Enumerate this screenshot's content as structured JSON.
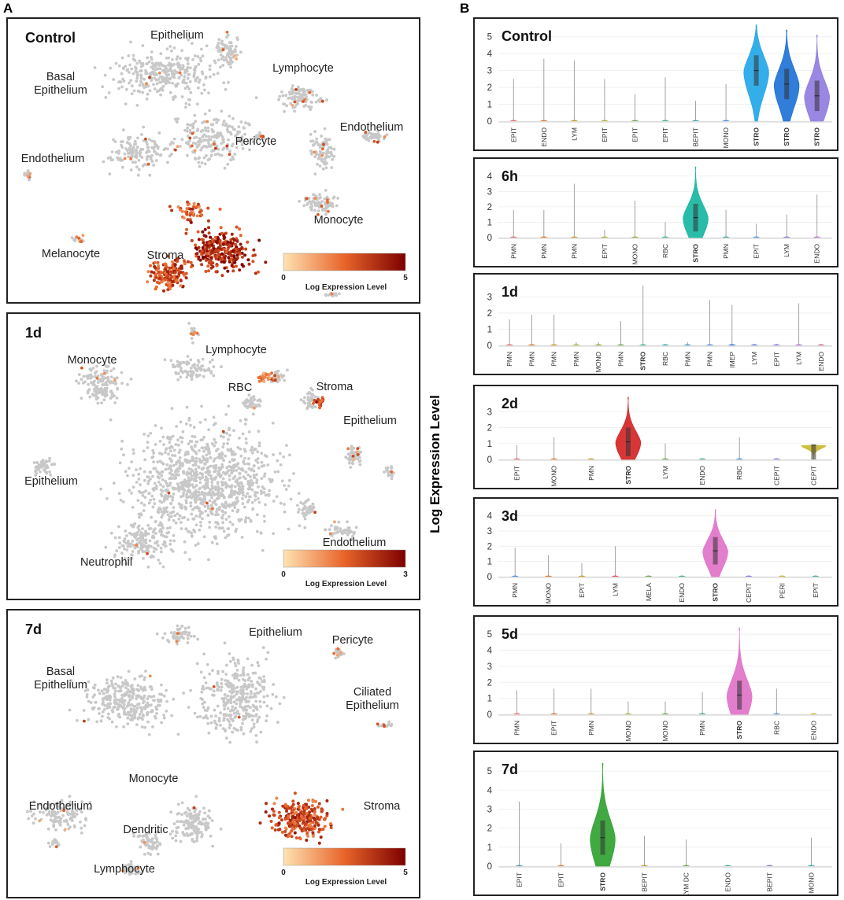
{
  "panels": {
    "a": "A",
    "b": "B"
  },
  "colors": {
    "dot": "#c8c8c8",
    "low": "#fde3b2",
    "mid": "#e8642a",
    "high": "#7d0000",
    "axis": "#555555"
  },
  "umaps": [
    {
      "title": "Control",
      "legend": {
        "min": "0",
        "max": "5",
        "label": "Log Expression Level"
      },
      "labels": [
        "Epithelium",
        "Basal\nEpithelium",
        "Lymphocyte",
        "Endothelium",
        "Pericyte",
        "Endothelium",
        "Monocyte",
        "Stroma",
        "Melanocyte"
      ]
    },
    {
      "title": "1d",
      "legend": {
        "min": "0",
        "max": "3",
        "label": "Log Expression Level"
      },
      "labels": [
        "Monocyte",
        "Lymphocyte",
        "RBC",
        "Stroma",
        "Epithelium",
        "Epithelium",
        "Endothelium",
        "Neutrophil"
      ]
    },
    {
      "title": "7d",
      "legend": {
        "min": "0",
        "max": "5",
        "label": "Log Expression Level"
      },
      "labels": [
        "Epithelium",
        "Pericyte",
        "Basal\nEpithelium",
        "Ciliated\nEpithelium",
        "Monocyte",
        "Stroma",
        "Endothelium",
        "Dendritic",
        "Lymphocyte"
      ]
    }
  ],
  "violin_ylabel": "Log Expression Level",
  "chart_data": [
    {
      "type": "violin",
      "title": "Control",
      "ylim": [
        0,
        5.5
      ],
      "yticks": [
        0,
        1,
        2,
        3,
        4,
        5
      ],
      "categories": [
        "EPIT",
        "ENDO",
        "LYM",
        "EPIT",
        "EPIT",
        "EPIT",
        "BEPIT",
        "MONO",
        "STRO",
        "STRO",
        "STRO"
      ],
      "max_values": [
        2.5,
        3.7,
        3.6,
        2.5,
        1.6,
        2.6,
        1.2,
        2.2,
        5.7,
        5.4,
        5.1
      ],
      "medians": [
        0,
        0,
        0,
        0,
        0,
        0,
        0,
        0,
        3.0,
        2.2,
        1.5
      ],
      "violin_colors": [
        "#e07070",
        "#d97a30",
        "#c79b2a",
        "#b0b035",
        "#6aa84f",
        "#45b08a",
        "#44aaaa",
        "#4d8fd6",
        "#1ea5e8",
        "#1a6fd6",
        "#8f79e0"
      ]
    },
    {
      "type": "violin",
      "title": "6h",
      "ylim": [
        0,
        4.5
      ],
      "yticks": [
        0,
        1,
        2,
        3,
        4
      ],
      "categories": [
        "PMN",
        "PMN",
        "PMN",
        "EPIT",
        "MONO",
        "RBC",
        "STRO",
        "PMN",
        "EPIT",
        "LYM",
        "ENDO"
      ],
      "max_values": [
        1.8,
        1.8,
        3.5,
        0.5,
        2.4,
        1.0,
        4.6,
        1.8,
        0.9,
        1.5,
        2.8
      ],
      "medians": [
        0,
        0,
        0,
        0,
        0,
        0,
        1.3,
        0,
        0,
        0,
        0
      ],
      "violin_colors": [
        "#e07070",
        "#d97a30",
        "#c79b2a",
        "#b0b035",
        "#8aa83f",
        "#45b08a",
        "#12b5a0",
        "#44aaaa",
        "#4d8fd6",
        "#7a7ae0",
        "#c070d0"
      ]
    },
    {
      "type": "violin",
      "title": "1d",
      "ylim": [
        0,
        3.8
      ],
      "yticks": [
        0,
        1,
        2,
        3
      ],
      "categories": [
        "PMN",
        "PMN",
        "PMN",
        "PMN",
        "MONO",
        "PMN",
        "STRO",
        "RBC",
        "PMN",
        "PMN",
        "IMEP",
        "LYM",
        "EPIT",
        "LYM",
        "ENDO"
      ],
      "max_values": [
        1.6,
        1.9,
        1.9,
        0.2,
        0.2,
        1.5,
        3.7,
        0.1,
        0.2,
        2.8,
        2.5,
        0.1,
        0.1,
        2.6,
        0.1
      ],
      "medians": [
        0,
        0,
        0,
        0,
        0,
        0,
        0,
        0,
        0,
        0,
        0,
        0,
        0,
        0,
        0
      ],
      "violin_colors": [
        "#e07070",
        "#d97a30",
        "#c79b2a",
        "#b0b035",
        "#8aa83f",
        "#6aa84f",
        "#45b08a",
        "#44aaaa",
        "#3aa0c0",
        "#4d8fd6",
        "#1a6fd6",
        "#6a7ae0",
        "#8f79e0",
        "#b070d0",
        "#d070a0"
      ]
    },
    {
      "type": "violin",
      "title": "2d",
      "ylim": [
        0,
        4
      ],
      "yticks": [
        0,
        1,
        2,
        3
      ],
      "categories": [
        "EPIT",
        "MONO",
        "PMN",
        "STRO",
        "LYM",
        "ENDO",
        "RBC",
        "CEPIT",
        "CEPIT"
      ],
      "max_values": [
        0.9,
        1.4,
        0.05,
        3.9,
        1.0,
        0.05,
        1.4,
        0.05,
        0.9
      ],
      "medians": [
        0,
        0,
        0,
        1.1,
        0,
        0,
        0,
        0,
        0.9
      ],
      "violin_colors": [
        "#e07070",
        "#d97a30",
        "#c79b2a",
        "#d42020",
        "#6aa84f",
        "#45b08a",
        "#4d8fd6",
        "#8f79e0",
        "#c8b830"
      ]
    },
    {
      "type": "violin",
      "title": "3d",
      "ylim": [
        0,
        4.5
      ],
      "yticks": [
        0,
        1,
        2,
        3,
        4
      ],
      "categories": [
        "PMN",
        "MONO",
        "EPIT",
        "LYM",
        "MELA",
        "ENDO",
        "STRO",
        "CEPIT",
        "PERI",
        "EPIT"
      ],
      "max_values": [
        1.9,
        1.4,
        0.9,
        2.0,
        0.05,
        0.05,
        4.4,
        0.05,
        0.05,
        0.05
      ],
      "medians": [
        0,
        0,
        0,
        0,
        0,
        0,
        1.7,
        0,
        0,
        0
      ],
      "violin_colors": [
        "#4d8fd6",
        "#d97a30",
        "#c79b2a",
        "#e05050",
        "#6aa84f",
        "#45b08a",
        "#e070c8",
        "#8f79e0",
        "#c8b830",
        "#44aaaa"
      ]
    },
    {
      "type": "violin",
      "title": "5d",
      "ylim": [
        0,
        5.5
      ],
      "yticks": [
        0,
        1,
        2,
        3,
        4,
        5
      ],
      "categories": [
        "PMN",
        "EPIT",
        "PMN",
        "MONO",
        "MONO",
        "PMN",
        "STRO",
        "RBC",
        "ENDO"
      ],
      "max_values": [
        1.5,
        1.6,
        1.6,
        0.8,
        0.8,
        1.4,
        5.4,
        1.6,
        0.05
      ],
      "medians": [
        0,
        0,
        0,
        0,
        0,
        0,
        1.2,
        0,
        0
      ],
      "violin_colors": [
        "#e07070",
        "#d97a30",
        "#c79b2a",
        "#b0b035",
        "#6aa84f",
        "#45b08a",
        "#e070c8",
        "#4d8fd6",
        "#c8b830"
      ]
    },
    {
      "type": "violin",
      "title": "7d",
      "ylim": [
        0,
        5.5
      ],
      "yticks": [
        0,
        1,
        2,
        3,
        4,
        5
      ],
      "categories": [
        "EPIT",
        "EPIT",
        "STRO",
        "BEPIT",
        "LYM DC",
        "ENDO",
        "BEPIT",
        "MONO"
      ],
      "max_values": [
        3.4,
        1.2,
        5.4,
        1.6,
        1.4,
        0.05,
        0.05,
        1.5
      ],
      "medians": [
        0,
        0,
        1.5,
        0,
        0,
        0,
        0,
        0
      ],
      "violin_colors": [
        "#4d8fd6",
        "#d97a30",
        "#2ca02c",
        "#c79b2a",
        "#6aa84f",
        "#45b08a",
        "#8f79e0",
        "#44aaaa"
      ]
    }
  ]
}
